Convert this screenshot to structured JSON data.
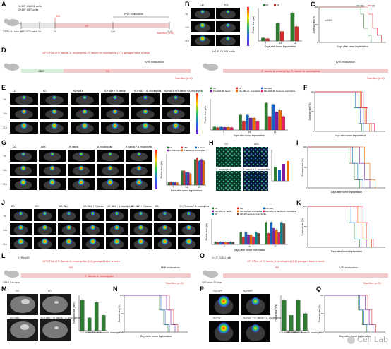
{
  "panels": {
    "A": {
      "letter": "A",
      "cells": "1×10⁵ GL261 cells",
      "cells2": "2×10⁵ U87 cells",
      "mouse": "C57BL/6J mice\nNOD-SCID mice",
      "kd": "KD",
      "ivis": "IVIS evaluation",
      "sacrifice": "Sacrifice (n=5)",
      "days": [
        "-3d",
        "0d",
        "7d",
        "14d",
        "21d"
      ]
    },
    "B": {
      "letter": "B",
      "groups": [
        "CD",
        "KD"
      ],
      "rows": [
        "7d",
        "14d",
        "21d"
      ]
    },
    "C": {
      "letter": "C",
      "ylabel": "Survival rate (%)",
      "xlabel": "Days after tumor implantation",
      "legend": [
        "CD",
        "KD"
      ],
      "p": "p<0.01"
    },
    "D": {
      "letter": "D",
      "left_title": "10⁸ CFUs of R. faecis, A. muciniphila, R. faecis+A. muciniphila (1:1) gavaged twice a week",
      "abx": "ABX",
      "kd": "KD",
      "ivis": "IVIS evaluation",
      "sacrifice": "Sacrifice (n=5)",
      "right_cells": "1×10⁵ GL261 cells",
      "right_mouse": "C57BL/6J mice\nNOD-SCID mice",
      "right_title": "R. faecis, A. muciniphila, R. faecis+A. muciniphila",
      "days": [
        "-3d",
        "0d",
        "7d",
        "14d",
        "21d"
      ]
    },
    "E": {
      "letter": "E",
      "groups": [
        "CD",
        "KD",
        "KD+ABX",
        "KD+ABX + R. faecis",
        "KD+ABX + A. muciniphila",
        "KD+ABX + R. faecis + A. muciniphila"
      ],
      "rows": [
        "7d",
        "14d",
        "21d"
      ]
    },
    "F": {
      "letter": "F",
      "ylabel": "Survival rate (%)",
      "xlabel": "Days after tumor implantation"
    },
    "G": {
      "letter": "G",
      "groups": [
        "CD",
        "ABX",
        "R. faecis",
        "A. muciniphila",
        "R. faecis + A. muciniphila"
      ],
      "rows": [
        "7d",
        "14d",
        "21d"
      ]
    },
    "H": {
      "letter": "H",
      "groups": [
        "CD",
        "ABX",
        "A. muciniphila",
        "R. faecis + A. muciniphila"
      ]
    },
    "I": {
      "letter": "I",
      "ylabel": "Survival rate (%)",
      "xlabel": "Days after tumor implantation"
    },
    "J": {
      "letter": "J",
      "groups": [
        "CD",
        "KD",
        "KD+ABX",
        "KD+ABX + R. faecis",
        "KD+ABX + A. muciniphila",
        "KD+ABX + R. faecis",
        "CD",
        "CD+R. faecis + A. muciniphila"
      ],
      "rows": [
        "7d",
        "14d",
        "21d"
      ]
    },
    "K": {
      "letter": "K",
      "ylabel": "Survival rate (%)",
      "xlabel": "Days after tumor implantation"
    },
    "L": {
      "letter": "L",
      "mouse": "GFAP-Cre mice",
      "plasmid": "LVRshp53",
      "cfu": "10⁸ CFUs of R. faecis+A. muciniphila (1:1) gavaged twice a week",
      "kd": "KD",
      "treat": "R. faecis+A. muciniphila",
      "mri": "MRI evaluation",
      "sacrifice": "Sacrifice (n=5)",
      "days": [
        "-3d",
        "0d",
        "7d",
        "14d",
        "20d"
      ]
    },
    "M": {
      "letter": "M",
      "groups": [
        "CD",
        "KD",
        "KD+ABX",
        "KD+ABX + R. faecis + A. muciniphila"
      ],
      "ylabel": "Tumor volume (mm³)"
    },
    "N": {
      "letter": "N",
      "ylabel": "Survival rate (%)",
      "xlabel": "Days after tumor implantation"
    },
    "O": {
      "letter": "O",
      "cells": "1×10⁵ GL261 cells",
      "mouse": "SPF mice\nGF mice",
      "cfu": "10⁸ CFUs of R. faecis, A. muciniphila (1:1) gavaged twice a week",
      "ivis": "IVIS evaluation",
      "kd": "KD",
      "sacrifice": "Sacrifice (n=5)",
      "days": [
        "-3d",
        "0d",
        "7d",
        "14d",
        "21d"
      ]
    },
    "P": {
      "letter": "P",
      "groups": [
        "CD+SPF",
        "KD+SPF",
        "KD+GF",
        "KD+GF + R. faecis + A. muciniphila"
      ]
    },
    "Q": {
      "letter": "Q",
      "ylabel": "Survival rate (%)",
      "xlabel": "Days after tumor implantation"
    }
  },
  "chart_data": [
    {
      "type": "bar",
      "panel": "B",
      "title": "",
      "ylabel": "Photon flux (p/s)",
      "xlabel": "Days after tumor implantation",
      "categories": [
        "7",
        "14",
        "21"
      ],
      "series": [
        {
          "name": "CD",
          "values": [
            1.0,
            6.0,
            9.5
          ]
        },
        {
          "name": "KD",
          "values": [
            0.8,
            3.2,
            4.8
          ]
        }
      ]
    },
    {
      "type": "line",
      "panel": "C",
      "title": "",
      "ylabel": "Survival rate (%)",
      "xlabel": "Days after tumor implantation",
      "series": [
        {
          "name": "CD",
          "x": [
            0,
            28,
            30,
            33,
            35
          ],
          "y": [
            100,
            80,
            40,
            20,
            0
          ]
        },
        {
          "name": "KD",
          "x": [
            0,
            33,
            36,
            39,
            42
          ],
          "y": [
            100,
            80,
            40,
            20,
            0
          ]
        }
      ]
    },
    {
      "type": "bar",
      "panel": "E",
      "ylabel": "Photon flux (p/s)",
      "xlabel": "Days after tumor implantation",
      "categories": [
        "7",
        "14",
        "21"
      ],
      "series": [
        {
          "name": "CD",
          "values": [
            1,
            5,
            9
          ]
        },
        {
          "name": "KD",
          "values": [
            0.8,
            3,
            4.5
          ]
        },
        {
          "name": "KD+ABX",
          "values": [
            1,
            5,
            8.5
          ]
        },
        {
          "name": "KD+ABX+R. faecis",
          "values": [
            0.9,
            4,
            6
          ]
        },
        {
          "name": "KD+ABX+A. muciniphila",
          "values": [
            0.9,
            4,
            6.5
          ]
        },
        {
          "name": "KD+ABX+R. faecis+A. muciniphila",
          "values": [
            0.8,
            3,
            4.5
          ]
        }
      ]
    },
    {
      "type": "bar",
      "panel": "G",
      "ylabel": "Photon flux (p/s)",
      "xlabel": "Days after tumor implantation",
      "categories": [
        "7",
        "14",
        "21"
      ],
      "series": [
        {
          "name": "CD",
          "values": [
            1,
            5,
            9
          ]
        },
        {
          "name": "ABX",
          "values": [
            1,
            5,
            9.5
          ]
        },
        {
          "name": "R. faecis",
          "values": [
            0.9,
            4.5,
            8.5
          ]
        },
        {
          "name": "A. muciniphila",
          "values": [
            0.9,
            4.5,
            9
          ]
        },
        {
          "name": "R. faecis+A. muciniphila",
          "values": [
            0.8,
            4,
            8.5
          ]
        }
      ]
    },
    {
      "type": "bar",
      "panel": "J",
      "ylabel": "Photon flux (p/s)",
      "xlabel": "Days after tumor implantation",
      "categories": [
        "7",
        "14",
        "21"
      ],
      "series": [
        {
          "name": "CD",
          "values": [
            1,
            5,
            9
          ]
        },
        {
          "name": "KD",
          "values": [
            0.8,
            3,
            4.5
          ]
        },
        {
          "name": "KD+ABX",
          "values": [
            1,
            5,
            9
          ]
        },
        {
          "name": "KD+ABX+R. faecis",
          "values": [
            0.9,
            4,
            6.5
          ]
        },
        {
          "name": "KD+ABX+A. muciniphila",
          "values": [
            0.9,
            4,
            6
          ]
        },
        {
          "name": "KD+ABX+R. faecis+A. muciniphila",
          "values": [
            0.8,
            3,
            4.8
          ]
        },
        {
          "name": "CD",
          "values": [
            1,
            5,
            9
          ]
        },
        {
          "name": "CD+R. faecis+A. muciniphila",
          "values": [
            0.9,
            4.5,
            8.5
          ]
        }
      ]
    },
    {
      "type": "bar",
      "panel": "M",
      "ylabel": "Tumor volume (mm³)",
      "categories": [
        "CD",
        "KD",
        "KD+ABX",
        "KD+ABX+R. faecis+A. muciniphila"
      ],
      "values": [
        60,
        25,
        55,
        30
      ]
    },
    {
      "type": "bar",
      "panel": "P",
      "ylabel": "Photon flux (p/s)",
      "categories": [
        "CD+SPF",
        "KD+SPF",
        "KD+GF",
        "KD+GF+R. faecis+A. muciniphila"
      ],
      "values": [
        9,
        4.5,
        9,
        5
      ]
    }
  ],
  "watermark": "Cell Lab",
  "colors": {
    "red": "#d32f2f",
    "green": "#2e7d32",
    "blue": "#1565c0",
    "purple": "#7b1fa2",
    "orange": "#ef6c00",
    "pink": "#e91e63",
    "grey": "#888888"
  }
}
